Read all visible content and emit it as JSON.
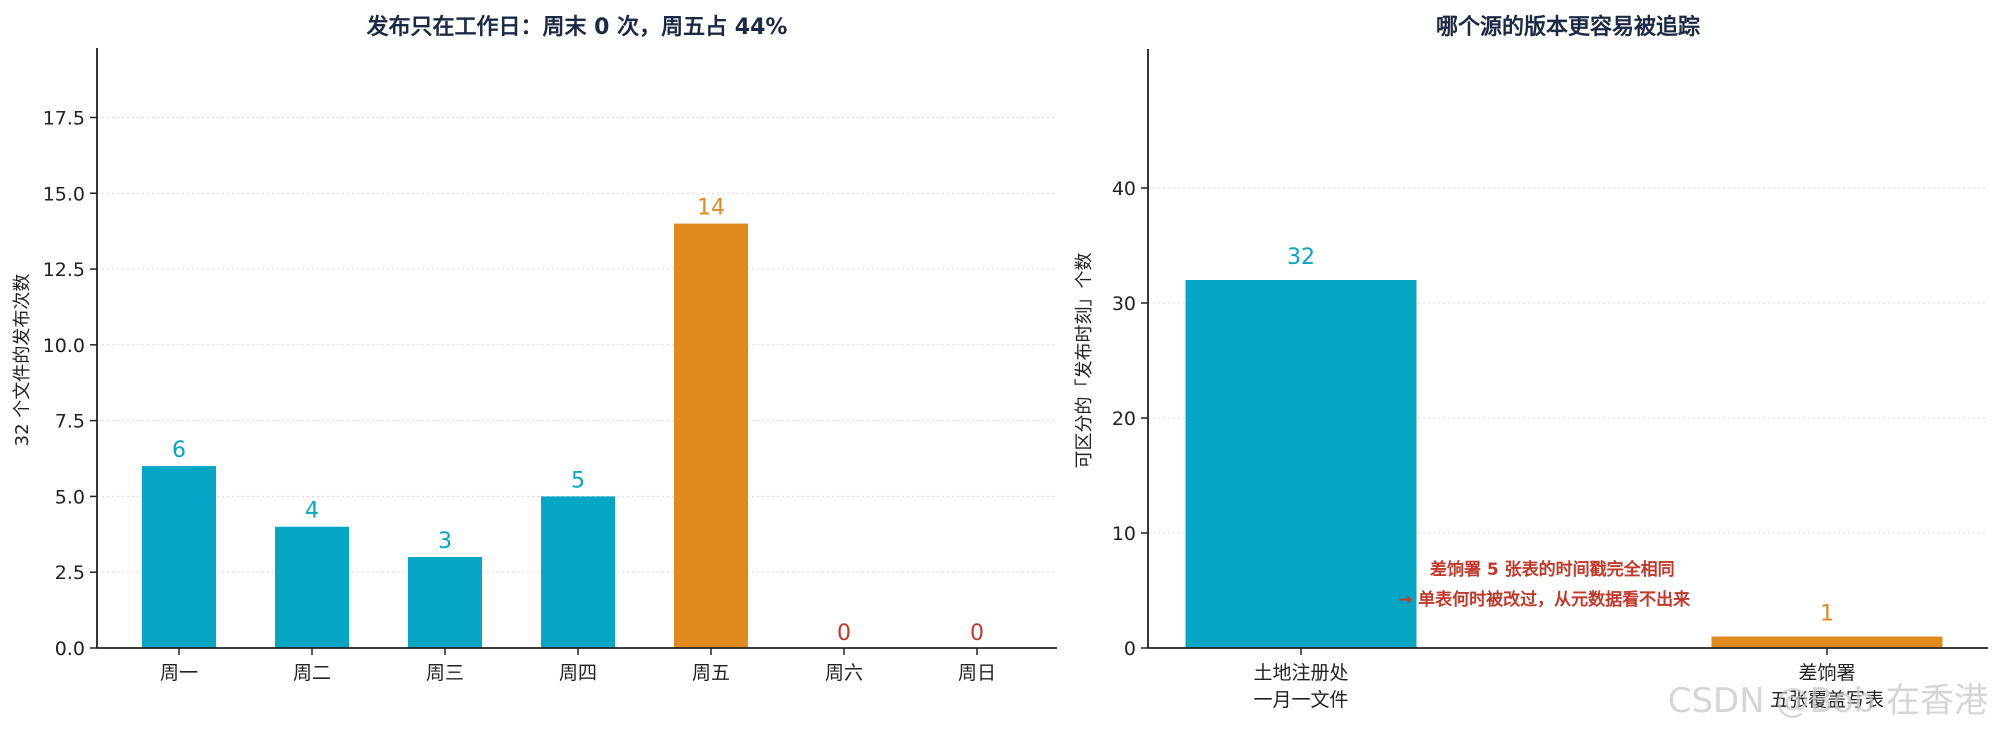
{
  "colors": {
    "primary": "#04a6c4",
    "highlight": "#e08a1e",
    "zero": "#c0392b",
    "axis": "#222222",
    "grid": "#d8d8d8",
    "title": "#1b2a44"
  },
  "chart_data": [
    {
      "type": "bar",
      "title": "发布只在工作日：周末 0 次，周五占 44%",
      "xlabel": "",
      "ylabel": "32 个文件的发布次数",
      "categories": [
        "周一",
        "周二",
        "周三",
        "周四",
        "周五",
        "周六",
        "周日"
      ],
      "values": [
        6,
        4,
        3,
        5,
        14,
        0,
        0
      ],
      "value_labels": [
        "6",
        "4",
        "3",
        "5",
        "14",
        "0",
        "0"
      ],
      "highlight_index": 4,
      "ylim": [
        0,
        19
      ],
      "yticks": [
        0,
        2.5,
        5,
        7.5,
        10,
        12.5,
        15,
        17.5
      ],
      "ytick_labels": [
        "0.0",
        "2.5",
        "5.0",
        "7.5",
        "10.0",
        "12.5",
        "15.0",
        "17.5"
      ],
      "grid": "y-dotted",
      "legend": "none"
    },
    {
      "type": "bar",
      "title": "哪个源的版本更容易被追踪",
      "xlabel": "",
      "ylabel": "可区分的「发布时刻」个数",
      "categories": [
        {
          "line1": "土地注册处",
          "line2": "一月一文件"
        },
        {
          "line1": "差饷署",
          "line2": "五张覆盖写表"
        }
      ],
      "values": [
        32,
        1
      ],
      "value_labels": [
        "32",
        "1"
      ],
      "ylim": [
        0,
        50
      ],
      "yticks": [
        0,
        10,
        20,
        30,
        40
      ],
      "ytick_labels": [
        "0",
        "10",
        "20",
        "30",
        "40"
      ],
      "grid": "y-dotted",
      "legend": "none",
      "annotation": {
        "line1": "差饷署 5 张表的时间戳完全相同",
        "line2": "→ 单表何时被改过，从元数据看不出来"
      }
    }
  ],
  "watermark": "CSDN @Bob 在香港"
}
